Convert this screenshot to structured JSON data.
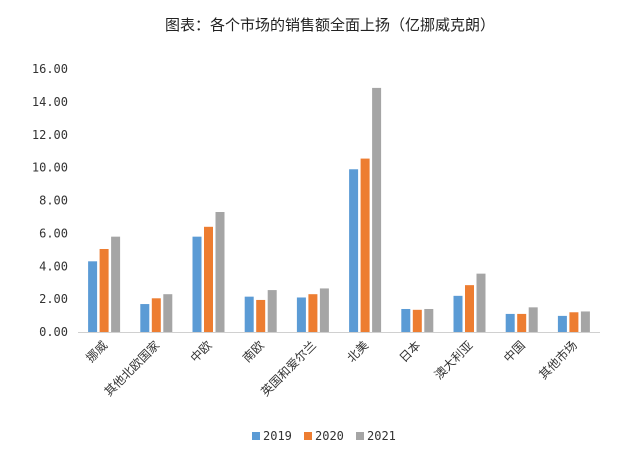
{
  "chart_data": {
    "type": "bar",
    "title": "图表：各个市场的销售额全面上扬（亿挪威克朗）",
    "xlabel": "",
    "ylabel": "",
    "ylim": [
      0,
      16
    ],
    "yticks": [
      "0.00",
      "2.00",
      "4.00",
      "6.00",
      "8.00",
      "10.00",
      "12.00",
      "14.00",
      "16.00"
    ],
    "grid": false,
    "legend_position": "bottom",
    "categories": [
      "挪威",
      "其他北欧国家",
      "中欧",
      "南欧",
      "英国和爱尔兰",
      "北美",
      "日本",
      "澳大利亚",
      "中国",
      "其他市场"
    ],
    "series": [
      {
        "name": "2019",
        "color": "#5b9bd5",
        "values": [
          4.3,
          1.7,
          5.8,
          2.15,
          2.1,
          9.9,
          1.4,
          2.2,
          1.1,
          0.98
        ]
      },
      {
        "name": "2020",
        "color": "#ed7d31",
        "values": [
          5.05,
          2.05,
          6.4,
          1.95,
          2.3,
          10.55,
          1.35,
          2.85,
          1.1,
          1.2
        ]
      },
      {
        "name": "2021",
        "color": "#a5a5a5",
        "values": [
          5.8,
          2.3,
          7.3,
          2.55,
          2.65,
          14.85,
          1.4,
          3.55,
          1.5,
          1.25
        ]
      }
    ]
  }
}
